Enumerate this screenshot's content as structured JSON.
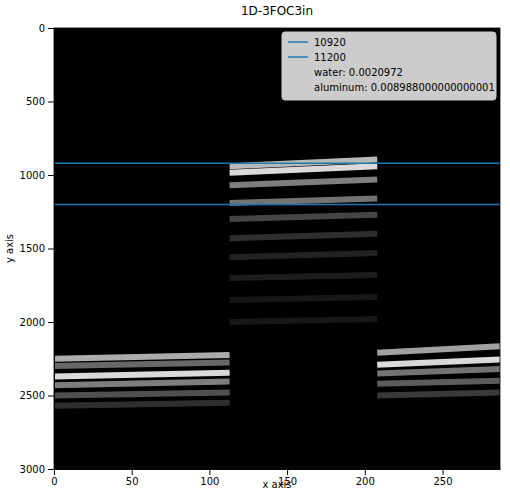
{
  "chart_data": {
    "type": "image",
    "title": "1D-3FOC3in",
    "x_label": "x axis",
    "y_label": "y axis",
    "xlim": [
      0,
      287
    ],
    "ylim": [
      3000,
      0
    ],
    "xticks": [
      0,
      50,
      100,
      150,
      200,
      250
    ],
    "yticks": [
      0,
      500,
      1000,
      1500,
      2000,
      2500,
      3000
    ],
    "series": [
      {
        "name": "10920",
        "color": "#1f77b4",
        "y": 920
      },
      {
        "name": "11200",
        "color": "#1f77b4",
        "y": 1200
      }
    ],
    "annotations": [
      "water: 0.0020972",
      "aluminum: 0.008988000000000001"
    ],
    "legend": "upper right",
    "stripes": [
      {
        "x": [
          0,
          113
        ],
        "y": [
          2250,
          2225
        ],
        "intensity": 0.75
      },
      {
        "x": [
          0,
          113
        ],
        "y": [
          2300,
          2275
        ],
        "intensity": 0.45
      },
      {
        "x": [
          0,
          113
        ],
        "y": [
          2370,
          2345
        ],
        "intensity": 0.95
      },
      {
        "x": [
          0,
          113
        ],
        "y": [
          2430,
          2405
        ],
        "intensity": 0.55
      },
      {
        "x": [
          0,
          113
        ],
        "y": [
          2500,
          2480
        ],
        "intensity": 0.35
      },
      {
        "x": [
          0,
          113
        ],
        "y": [
          2570,
          2550
        ],
        "intensity": 0.2
      },
      {
        "x": [
          113,
          208
        ],
        "y": [
          940,
          895
        ],
        "intensity": 0.8
      },
      {
        "x": [
          113,
          208
        ],
        "y": [
          985,
          940
        ],
        "intensity": 0.95
      },
      {
        "x": [
          113,
          208
        ],
        "y": [
          1070,
          1030
        ],
        "intensity": 0.55
      },
      {
        "x": [
          113,
          208
        ],
        "y": [
          1190,
          1160
        ],
        "intensity": 0.5
      },
      {
        "x": [
          113,
          208
        ],
        "y": [
          1300,
          1270
        ],
        "intensity": 0.3
      },
      {
        "x": [
          113,
          208
        ],
        "y": [
          1430,
          1400
        ],
        "intensity": 0.2
      },
      {
        "x": [
          113,
          208
        ],
        "y": [
          1560,
          1530
        ],
        "intensity": 0.15
      },
      {
        "x": [
          113,
          208
        ],
        "y": [
          1700,
          1680
        ],
        "intensity": 0.12
      },
      {
        "x": [
          113,
          208
        ],
        "y": [
          1850,
          1830
        ],
        "intensity": 0.1
      },
      {
        "x": [
          113,
          208
        ],
        "y": [
          2000,
          1980
        ],
        "intensity": 0.1
      },
      {
        "x": [
          208,
          287
        ],
        "y": [
          2210,
          2165
        ],
        "intensity": 0.7
      },
      {
        "x": [
          208,
          287
        ],
        "y": [
          2290,
          2255
        ],
        "intensity": 0.95
      },
      {
        "x": [
          208,
          287
        ],
        "y": [
          2350,
          2320
        ],
        "intensity": 0.5
      },
      {
        "x": [
          208,
          287
        ],
        "y": [
          2420,
          2400
        ],
        "intensity": 0.4
      },
      {
        "x": [
          208,
          287
        ],
        "y": [
          2500,
          2480
        ],
        "intensity": 0.25
      }
    ]
  }
}
